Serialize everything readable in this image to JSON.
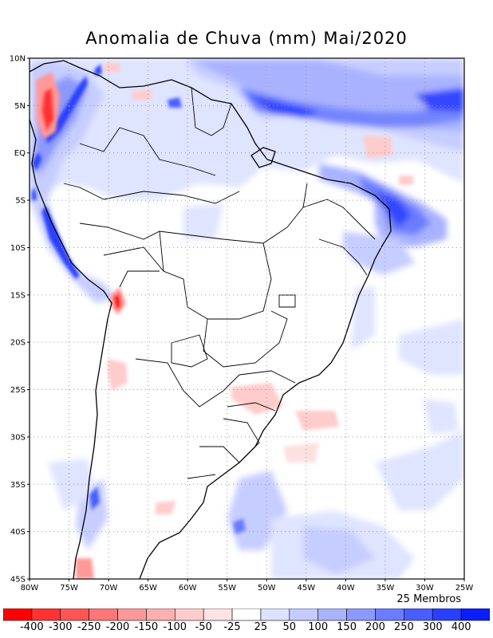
{
  "title": "Anomalia de Chuva (mm) Mai/2020",
  "members_label": "25 Membros",
  "y_axis_labels": [
    "10N",
    "5N",
    "EQ",
    "5S",
    "10S",
    "15S",
    "20S",
    "25S",
    "30S",
    "35S",
    "40S",
    "45S"
  ],
  "x_axis_labels": [
    "80W",
    "75W",
    "70W",
    "65W",
    "60W",
    "55W",
    "50W",
    "45W",
    "40W",
    "35W",
    "30W",
    "25W"
  ],
  "colorbar": {
    "labels": [
      "-400",
      "-300",
      "-250",
      "-200",
      "-150",
      "-100",
      "-50",
      "-25",
      "25",
      "50",
      "100",
      "150",
      "200",
      "250",
      "300",
      "400"
    ],
    "colors": [
      "#ff0000",
      "#ff3333",
      "#ff5555",
      "#ff7777",
      "#ff9999",
      "#ffb0b0",
      "#ffcccc",
      "#ffe4e4",
      "#ffffff",
      "#dde2ff",
      "#c4ccff",
      "#a9b4ff",
      "#8c99ff",
      "#6b7cff",
      "#4a5eff",
      "#2a40ff",
      "#0a1eff"
    ]
  }
}
